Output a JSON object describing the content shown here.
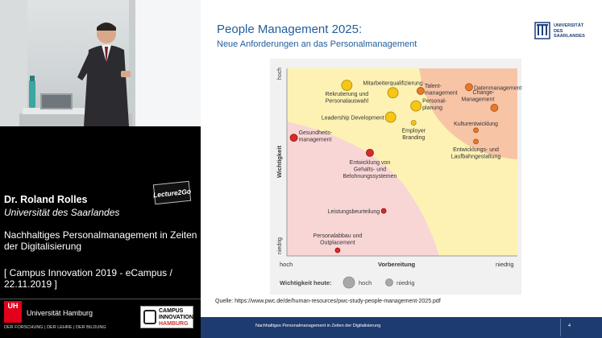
{
  "speaker": {
    "name": "Dr. Roland Rolles",
    "university": "Universität des Saarlandes",
    "talk_title": "Nachhaltiges Personalmanagement in Zeiten der Digitalisierung",
    "event": "[ Campus Innovation 2019 - eCampus / 22.11.2019 ]"
  },
  "logos": {
    "lecture2go": "Lecture2Go",
    "uh_box": "UH",
    "uh_name": "Universität Hamburg",
    "uh_sub": "DER FORSCHUNG | DER LEHRE | DER BILDUNG",
    "cih_line1": "CAMPUS",
    "cih_line2": "INNOVATION",
    "cih_line3": "HAMBURG",
    "saar_line1": "UNIVERSITÄT",
    "saar_line2": "DES",
    "saar_line3": "SAARLANDES"
  },
  "slide": {
    "title": "People Management 2025:",
    "subtitle": "Neue Anforderungen an das Personalmanagement",
    "source": "Quelle: https://www.pwc.de/de/human-resources/pwc-study-people-management-2025.pdf"
  },
  "chart_data": {
    "type": "scatter",
    "ylabel": "Wichtigkeit",
    "xlabel": "Vorbereitung",
    "y_top_label": "hoch",
    "y_bottom_label": "niedrig",
    "x_left_label": "hoch",
    "x_right_label": "niedrig",
    "legend_title": "Wichtigkeit heute:",
    "legend_high": "hoch",
    "legend_low": "niedrig",
    "colors": {
      "yellow": "#f5c518",
      "orange": "#e8792a",
      "red": "#d72b2b",
      "zone_yellow": "#fdf2b3",
      "zone_orange": "#f8c4a6",
      "zone_pink": "#f9d6d6"
    },
    "points": [
      {
        "label": "Mitarbeiterqualifizierung",
        "x": 0.46,
        "y": 0.87,
        "color": "yellow",
        "size": "large"
      },
      {
        "label": "Rekrutierung und Personalauswahl",
        "x": 0.26,
        "y": 0.91,
        "color": "yellow",
        "size": "large"
      },
      {
        "label": "Talent-management",
        "x": 0.58,
        "y": 0.88,
        "color": "orange",
        "size": "medium"
      },
      {
        "label": "Datenmanagement",
        "x": 0.79,
        "y": 0.9,
        "color": "orange",
        "size": "medium"
      },
      {
        "label": "Change-Management",
        "x": 0.9,
        "y": 0.79,
        "color": "orange",
        "size": "medium"
      },
      {
        "label": "Personal-planung",
        "x": 0.56,
        "y": 0.8,
        "color": "yellow",
        "size": "large"
      },
      {
        "label": "Leadership Development",
        "x": 0.45,
        "y": 0.74,
        "color": "yellow",
        "size": "large"
      },
      {
        "label": "Employer Branding",
        "x": 0.55,
        "y": 0.71,
        "color": "yellow",
        "size": "small"
      },
      {
        "label": "Kulturentwicklung",
        "x": 0.82,
        "y": 0.67,
        "color": "orange",
        "size": "small"
      },
      {
        "label": "Entwicklungs- und Laufbahngestaltung",
        "x": 0.82,
        "y": 0.61,
        "color": "orange",
        "size": "small"
      },
      {
        "label": "Gesundheits-management",
        "x": 0.03,
        "y": 0.63,
        "color": "red",
        "size": "medium"
      },
      {
        "label": "Entwicklung von Gehalts- und Belohnungssystemen",
        "x": 0.36,
        "y": 0.55,
        "color": "red",
        "size": "medium"
      },
      {
        "label": "Leistungsbeurteilung",
        "x": 0.42,
        "y": 0.24,
        "color": "red",
        "size": "small"
      },
      {
        "label": "Personalabbau und Outplacement",
        "x": 0.22,
        "y": 0.03,
        "color": "red",
        "size": "small"
      }
    ]
  },
  "bottom_bar": {
    "text": "Nachhaltiges Personalmanagement in Zeiten der Digitalisierung",
    "page": "4"
  }
}
